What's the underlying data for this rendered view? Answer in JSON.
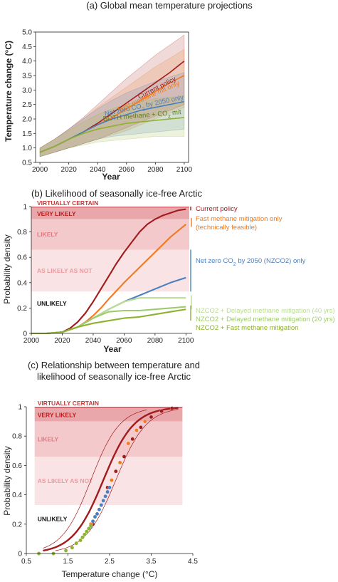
{
  "colors": {
    "current_policy": "#a01c1c",
    "fast_methane": "#f07a1e",
    "net_zero": "#4a7fc1",
    "both": "#8db230",
    "delayed_40": "#bcdc94",
    "delayed_20": "#9fcb6c",
    "axis": "#222222"
  },
  "chart_data": [
    {
      "type": "line",
      "title": "(a) Global mean temperature projections",
      "xlabel": "Year",
      "ylabel": "Temperature change (°C)",
      "xlim": [
        1997,
        2103
      ],
      "ylim": [
        0.5,
        5.0
      ],
      "xticks": [
        2000,
        2020,
        2040,
        2060,
        2080,
        2100
      ],
      "yticks": [
        "0.5",
        "1.0",
        "1.5",
        "2.0",
        "2.5",
        "3.0",
        "3.5",
        "4.0",
        "4.5",
        "5.0"
      ],
      "series": [
        {
          "name": "Current policy",
          "color_key": "current_policy",
          "x": [
            2000,
            2010,
            2020,
            2030,
            2040,
            2050,
            2060,
            2070,
            2080,
            2090,
            2100
          ],
          "y": [
            0.85,
            1.05,
            1.3,
            1.55,
            1.85,
            2.2,
            2.55,
            2.9,
            3.25,
            3.6,
            4.0
          ],
          "lower": [
            0.7,
            0.85,
            1.0,
            1.15,
            1.3,
            1.5,
            1.7,
            1.9,
            2.1,
            2.3,
            2.5
          ],
          "upper": [
            1.0,
            1.3,
            1.65,
            2.05,
            2.5,
            2.95,
            3.4,
            3.8,
            4.2,
            4.55,
            4.9
          ]
        },
        {
          "name": "Fast methane mit only",
          "color_key": "fast_methane",
          "x": [
            2000,
            2010,
            2020,
            2030,
            2040,
            2050,
            2060,
            2070,
            2080,
            2090,
            2100
          ],
          "y": [
            0.85,
            1.05,
            1.3,
            1.55,
            1.8,
            2.05,
            2.35,
            2.65,
            2.95,
            3.25,
            3.5
          ],
          "lower": [
            0.7,
            0.85,
            1.0,
            1.15,
            1.3,
            1.45,
            1.6,
            1.8,
            2.0,
            2.2,
            2.4
          ],
          "upper": [
            1.0,
            1.3,
            1.65,
            2.0,
            2.4,
            2.75,
            3.1,
            3.45,
            3.8,
            4.1,
            4.4
          ]
        },
        {
          "name": "Net zero CO2 by 2050 only",
          "color_key": "net_zero",
          "x": [
            2000,
            2010,
            2020,
            2030,
            2040,
            2050,
            2060,
            2070,
            2080,
            2090,
            2100
          ],
          "y": [
            0.85,
            1.05,
            1.3,
            1.55,
            1.8,
            2.0,
            2.15,
            2.3,
            2.4,
            2.5,
            2.6
          ],
          "lower": [
            0.7,
            0.85,
            1.0,
            1.15,
            1.3,
            1.4,
            1.45,
            1.5,
            1.55,
            1.6,
            1.65
          ],
          "upper": [
            1.0,
            1.3,
            1.65,
            2.0,
            2.35,
            2.65,
            2.9,
            3.1,
            3.3,
            3.45,
            3.6
          ]
        },
        {
          "name": "BOTH methane + CO2 mit",
          "color_key": "both",
          "x": [
            2000,
            2010,
            2020,
            2030,
            2040,
            2050,
            2060,
            2070,
            2080,
            2090,
            2100
          ],
          "y": [
            0.85,
            1.05,
            1.3,
            1.5,
            1.65,
            1.75,
            1.85,
            1.9,
            1.95,
            2.0,
            2.05
          ],
          "lower": [
            0.7,
            0.85,
            1.0,
            1.1,
            1.2,
            1.25,
            1.3,
            1.35,
            1.4,
            1.4,
            1.4
          ],
          "upper": [
            1.0,
            1.3,
            1.6,
            1.9,
            2.15,
            2.35,
            2.5,
            2.6,
            2.7,
            2.75,
            2.8
          ]
        }
      ],
      "annotations": {
        "current_policy": "Current policy",
        "fast_methane": "Fast methane mit only",
        "net_zero_pre": "Net zero CO",
        "net_zero_sub": "2",
        "net_zero_post": " by 2050 only",
        "both_pre": "BOTH methane + CO",
        "both_sub": "2",
        "both_post": " mit"
      }
    },
    {
      "type": "line",
      "title": "(b) Likelihood of seasonally ice-free Arctic",
      "xlabel": "Year",
      "ylabel": "Probability density",
      "xlim": [
        2000,
        2104
      ],
      "ylim": [
        0,
        1
      ],
      "xticks": [
        2000,
        2020,
        2040,
        2060,
        2080,
        2100
      ],
      "yticks": [
        "0",
        "0.2",
        "0.4",
        "0.6",
        "0.8",
        "1"
      ],
      "bands": [
        {
          "label": "VIRTUALLY CERTAIN",
          "from": 0.99,
          "to": 1.0,
          "color": "#c23a3a",
          "fill": "#d9696f"
        },
        {
          "label": "VERY LIKELY",
          "from": 0.9,
          "to": 0.99,
          "color": "#b81c1c",
          "fill": "#eaa7ab"
        },
        {
          "label": "LIKELY",
          "from": 0.66,
          "to": 0.9,
          "color": "#e07a82",
          "fill": "#f3c9cc"
        },
        {
          "label": "AS LIKELY AS NOT",
          "from": 0.33,
          "to": 0.66,
          "color": "#ec9aa0",
          "fill": "#f9e3e4"
        },
        {
          "label": "UNLIKELY",
          "from": 0.0,
          "to": 0.33,
          "color": "#111111",
          "fill": "#ffffff"
        }
      ],
      "series": [
        {
          "name": "Current policy",
          "color_key": "current_policy",
          "x": [
            2000,
            2010,
            2020,
            2025,
            2030,
            2035,
            2040,
            2045,
            2050,
            2055,
            2060,
            2065,
            2070,
            2075,
            2080,
            2085,
            2090,
            2095,
            2100
          ],
          "y": [
            0,
            0,
            0.01,
            0.04,
            0.09,
            0.16,
            0.25,
            0.35,
            0.45,
            0.55,
            0.64,
            0.72,
            0.8,
            0.86,
            0.9,
            0.93,
            0.95,
            0.97,
            0.98
          ]
        },
        {
          "name": "Fast methane mitigation only (technically feasible)",
          "color_key": "fast_methane",
          "x": [
            2000,
            2010,
            2020,
            2030,
            2035,
            2040,
            2045,
            2050,
            2060,
            2070,
            2080,
            2090,
            2100
          ],
          "y": [
            0,
            0,
            0.01,
            0.05,
            0.09,
            0.14,
            0.2,
            0.27,
            0.4,
            0.52,
            0.64,
            0.76,
            0.86
          ]
        },
        {
          "name": "Net zero CO2 by 2050 (NZCO2) only",
          "color_key": "net_zero",
          "x": [
            2000,
            2010,
            2020,
            2030,
            2040,
            2050,
            2060,
            2070,
            2080,
            2090,
            2100
          ],
          "y": [
            0,
            0,
            0.01,
            0.05,
            0.12,
            0.19,
            0.25,
            0.3,
            0.35,
            0.4,
            0.44
          ]
        },
        {
          "name": "NZCO2 + Delayed methane mitigation (40 yrs)",
          "color_key": "delayed_40",
          "x": [
            2000,
            2010,
            2020,
            2030,
            2040,
            2050,
            2060,
            2070,
            2080,
            2090,
            2100
          ],
          "y": [
            0,
            0,
            0.01,
            0.05,
            0.12,
            0.19,
            0.25,
            0.28,
            0.28,
            0.28,
            0.28
          ]
        },
        {
          "name": "NZCO2 + Delayed methane mitigation (20 yrs)",
          "color_key": "delayed_20",
          "x": [
            2000,
            2010,
            2020,
            2030,
            2040,
            2050,
            2060,
            2070,
            2080,
            2090,
            2100
          ],
          "y": [
            0,
            0,
            0.01,
            0.05,
            0.12,
            0.17,
            0.18,
            0.18,
            0.19,
            0.2,
            0.21
          ]
        },
        {
          "name": "NZCO2 + Fast methane mitigation",
          "color_key": "both",
          "x": [
            2000,
            2010,
            2020,
            2030,
            2040,
            2050,
            2060,
            2070,
            2080,
            2090,
            2100
          ],
          "y": [
            0,
            0,
            0.01,
            0.05,
            0.08,
            0.1,
            0.12,
            0.13,
            0.15,
            0.17,
            0.19
          ]
        }
      ],
      "legend_lines": [
        {
          "text": "Current policy",
          "color_key": "current_policy",
          "y": 0.985
        },
        {
          "text": "Fast methane mitigation only",
          "color_key": "fast_methane",
          "y": 0.92
        },
        {
          "text": "(technically feasible)",
          "color_key": "fast_methane",
          "y": 0.85
        },
        {
          "text": "Net zero CO2 by 2050 (NZCO2) only",
          "color_key": "net_zero",
          "y": 0.47
        },
        {
          "text": "NZCO2 + Delayed methane mitigation (40 yrs)",
          "color_key": "delayed_40",
          "y": 0.28
        },
        {
          "text": "NZCO2 + Delayed methane mitigation (20 yrs)",
          "color_key": "delayed_20",
          "y": 0.22
        },
        {
          "text": "NZCO2 + Fast methane mitigation",
          "color_key": "both",
          "y": 0.16
        }
      ]
    },
    {
      "type": "scatter",
      "title_line1": "(c) Relationship between temperature and",
      "title_line2": "likelihood of seasonally ice-free Arctic",
      "xlabel": "Temperature change (°C)",
      "ylabel": "Probability density",
      "xlim": [
        0.5,
        4.5
      ],
      "ylim": [
        0,
        1
      ],
      "xticks": [
        0.5,
        1.5,
        2.5,
        3.5,
        4.5
      ],
      "xtick_labels": [
        "0.5",
        "1.5",
        "2.5",
        "3.5",
        "4.5"
      ],
      "yticks": [
        "0",
        "0.2",
        "0.4",
        "0.6",
        "0.8",
        "1"
      ],
      "bands": [
        {
          "label": "VIRTUALLY CERTAIN",
          "from": 0.99,
          "to": 1.0,
          "color": "#c23a3a",
          "fill": "#d9696f"
        },
        {
          "label": "VERY LIKELY",
          "from": 0.9,
          "to": 0.99,
          "color": "#b81c1c",
          "fill": "#eaa7ab"
        },
        {
          "label": "LIKELY",
          "from": 0.66,
          "to": 0.9,
          "color": "#e07a82",
          "fill": "#f3c9cc"
        },
        {
          "label": "AS LIKELY AS NOT",
          "from": 0.33,
          "to": 0.66,
          "color": "#ec9aa0",
          "fill": "#f9e3e4"
        },
        {
          "label": "UNLIKELY",
          "from": 0.0,
          "to": 0.33,
          "color": "#111111",
          "fill": "#ffffff"
        }
      ],
      "curves": [
        {
          "center": 2.35,
          "width": 0.37,
          "color_key": "current_policy",
          "lw": 2.4,
          "x_from": 0.9,
          "x_to": 4.15
        },
        {
          "center": 2.05,
          "width": 0.35,
          "color_key": "current_policy",
          "lw": 0.7,
          "x_from": 0.9,
          "x_to": 3.4
        },
        {
          "center": 2.65,
          "width": 0.37,
          "color_key": "current_policy",
          "lw": 0.7,
          "x_from": 1.2,
          "x_to": 4.15
        }
      ],
      "points": [
        {
          "color_key": "current_policy",
          "x": [
            2.1,
            2.3,
            2.45,
            2.65,
            2.85,
            3.05,
            3.25,
            3.5,
            3.75,
            4.0
          ],
          "y": [
            0.2,
            0.33,
            0.45,
            0.56,
            0.66,
            0.78,
            0.86,
            0.93,
            0.97,
            0.99
          ]
        },
        {
          "color_key": "fast_methane",
          "x": [
            2.05,
            2.2,
            2.35,
            2.55,
            2.75,
            2.95,
            3.15,
            3.35
          ],
          "y": [
            0.2,
            0.27,
            0.36,
            0.5,
            0.62,
            0.75,
            0.84,
            0.9
          ]
        },
        {
          "color_key": "net_zero",
          "x": [
            2.05,
            2.1,
            2.15,
            2.2,
            2.25,
            2.3,
            2.35,
            2.4,
            2.45,
            2.5
          ],
          "y": [
            0.18,
            0.22,
            0.25,
            0.27,
            0.3,
            0.33,
            0.36,
            0.39,
            0.42,
            0.45
          ]
        },
        {
          "color_key": "both",
          "x": [
            0.8,
            1.15,
            1.45,
            1.6,
            1.7,
            1.8,
            1.85,
            1.9,
            1.95,
            2.0,
            2.05
          ],
          "y": [
            0,
            0,
            0.02,
            0.04,
            0.07,
            0.09,
            0.11,
            0.13,
            0.15,
            0.17,
            0.19
          ]
        }
      ]
    }
  ]
}
